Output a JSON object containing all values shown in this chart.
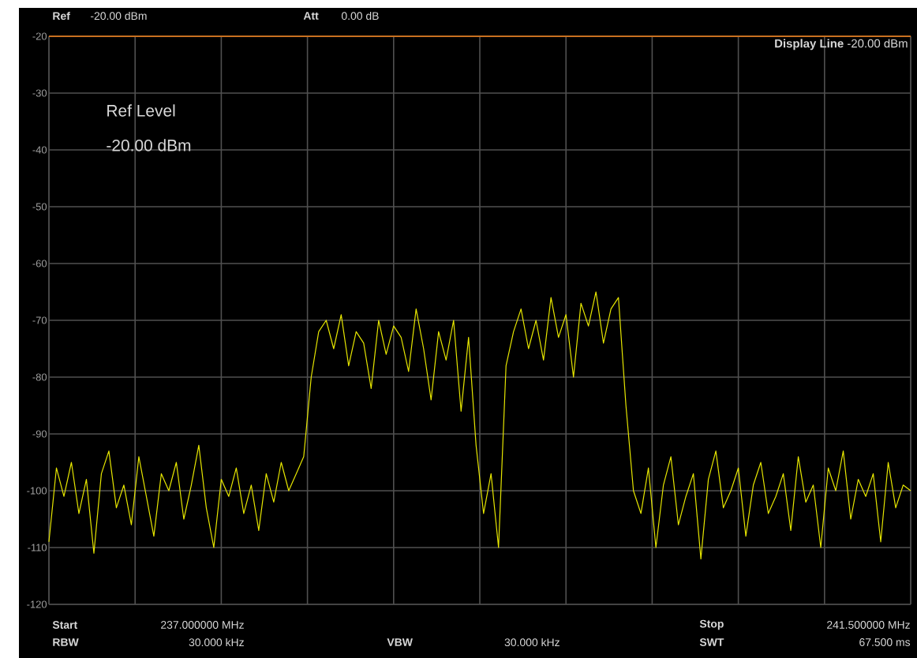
{
  "chart_data": {
    "type": "line",
    "annotations": [
      "Ref",
      "-20.00 dBm",
      "Att",
      "0.00 dB",
      "Ref Level",
      "-20.00 dBm",
      "Start",
      "237.000000 MHz",
      "RBW",
      "30.000 kHz",
      "VBW",
      "30.000 kHz",
      "Stop",
      "241.500000 MHz",
      "SWT",
      "67.500 ms"
    ],
    "categories": [
      null,
      null,
      null,
      null,
      null,
      null,
      null,
      null,
      null,
      null,
      null,
      null,
      null,
      null,
      null,
      null,
      null,
      null,
      null,
      null,
      null,
      null,
      null,
      null,
      null,
      null,
      null,
      null,
      null,
      null,
      null,
      null,
      null,
      null,
      null,
      null,
      null,
      null,
      null,
      null,
      null,
      null,
      null,
      null,
      null,
      null,
      null,
      null,
      null,
      null,
      null,
      null,
      null,
      null,
      null,
      null,
      null,
      null,
      null,
      null,
      null,
      null,
      null,
      null,
      null,
      null,
      null,
      null,
      null,
      null,
      null,
      null,
      null,
      null,
      null,
      null,
      null,
      null,
      null,
      null,
      null,
      null,
      null,
      null,
      null,
      null,
      null,
      null,
      null,
      null,
      null,
      null,
      null,
      null,
      null,
      null,
      null,
      null,
      null,
      null,
      null,
      null,
      null,
      null,
      null,
      null,
      null,
      null,
      null,
      null,
      null,
      null,
      null,
      null,
      null,
      null
    ],
    "series": [
      {
        "color": "#e6e600",
        "values": [
          -109,
          -96,
          -101,
          -95,
          -104,
          -98,
          -111,
          -97,
          -93,
          -103,
          -99,
          -106,
          -94,
          -101,
          -108,
          -97,
          -100,
          -95,
          -105,
          -99,
          -92,
          -103,
          -110,
          -98,
          -101,
          -96,
          -104,
          -99,
          -107,
          -97,
          -102,
          -95,
          -100,
          -97,
          -94,
          -80,
          -72,
          -70,
          -75,
          -69,
          -78,
          -72,
          -74,
          -82,
          -70,
          -76,
          -71,
          -73,
          -79,
          -68,
          -75,
          -84,
          -72,
          -77,
          -70,
          -86,
          -73,
          -92,
          -104,
          -97,
          -110,
          -78,
          -72,
          -68,
          -75,
          -70,
          -77,
          -66,
          -73,
          -69,
          -80,
          -67,
          -71,
          -65,
          -74,
          -68,
          -66,
          -85,
          -100,
          -104,
          -96,
          -110,
          -99,
          -94,
          -106,
          -101,
          -97,
          -112,
          -98,
          -93,
          -103,
          -100,
          -96,
          -108,
          -99,
          -95,
          -104,
          -101,
          -97,
          -107,
          -94,
          -102,
          -99,
          -110,
          -96,
          -100,
          -93,
          -105,
          -98,
          -101,
          -97,
          -109,
          -95,
          -103,
          -99,
          -100
        ]
      }
    ],
    "ylim": [
      -120,
      -20
    ],
    "yticks": [
      {
        "value": -120,
        "label": "-120"
      },
      {
        "value": -110,
        "label": "-110"
      },
      {
        "value": -100,
        "label": "-100"
      },
      {
        "value": -90,
        "label": "-90"
      },
      {
        "value": -80,
        "label": "-80"
      },
      {
        "value": -70,
        "label": "-70"
      },
      {
        "value": -60,
        "label": "-60"
      },
      {
        "value": -50,
        "label": "-50"
      },
      {
        "value": -40,
        "label": "-40"
      },
      {
        "value": -30,
        "label": "-30"
      },
      {
        "value": -20,
        "label": "-20"
      }
    ],
    "ref_lines": [
      {
        "axis": "y",
        "value": -20,
        "label": "**Display Line** -20.00 dBm",
        "color": "#c87020"
      }
    ],
    "tick_labels": "y",
    "grid": true,
    "marker": "none",
    "line_style": "solid"
  }
}
